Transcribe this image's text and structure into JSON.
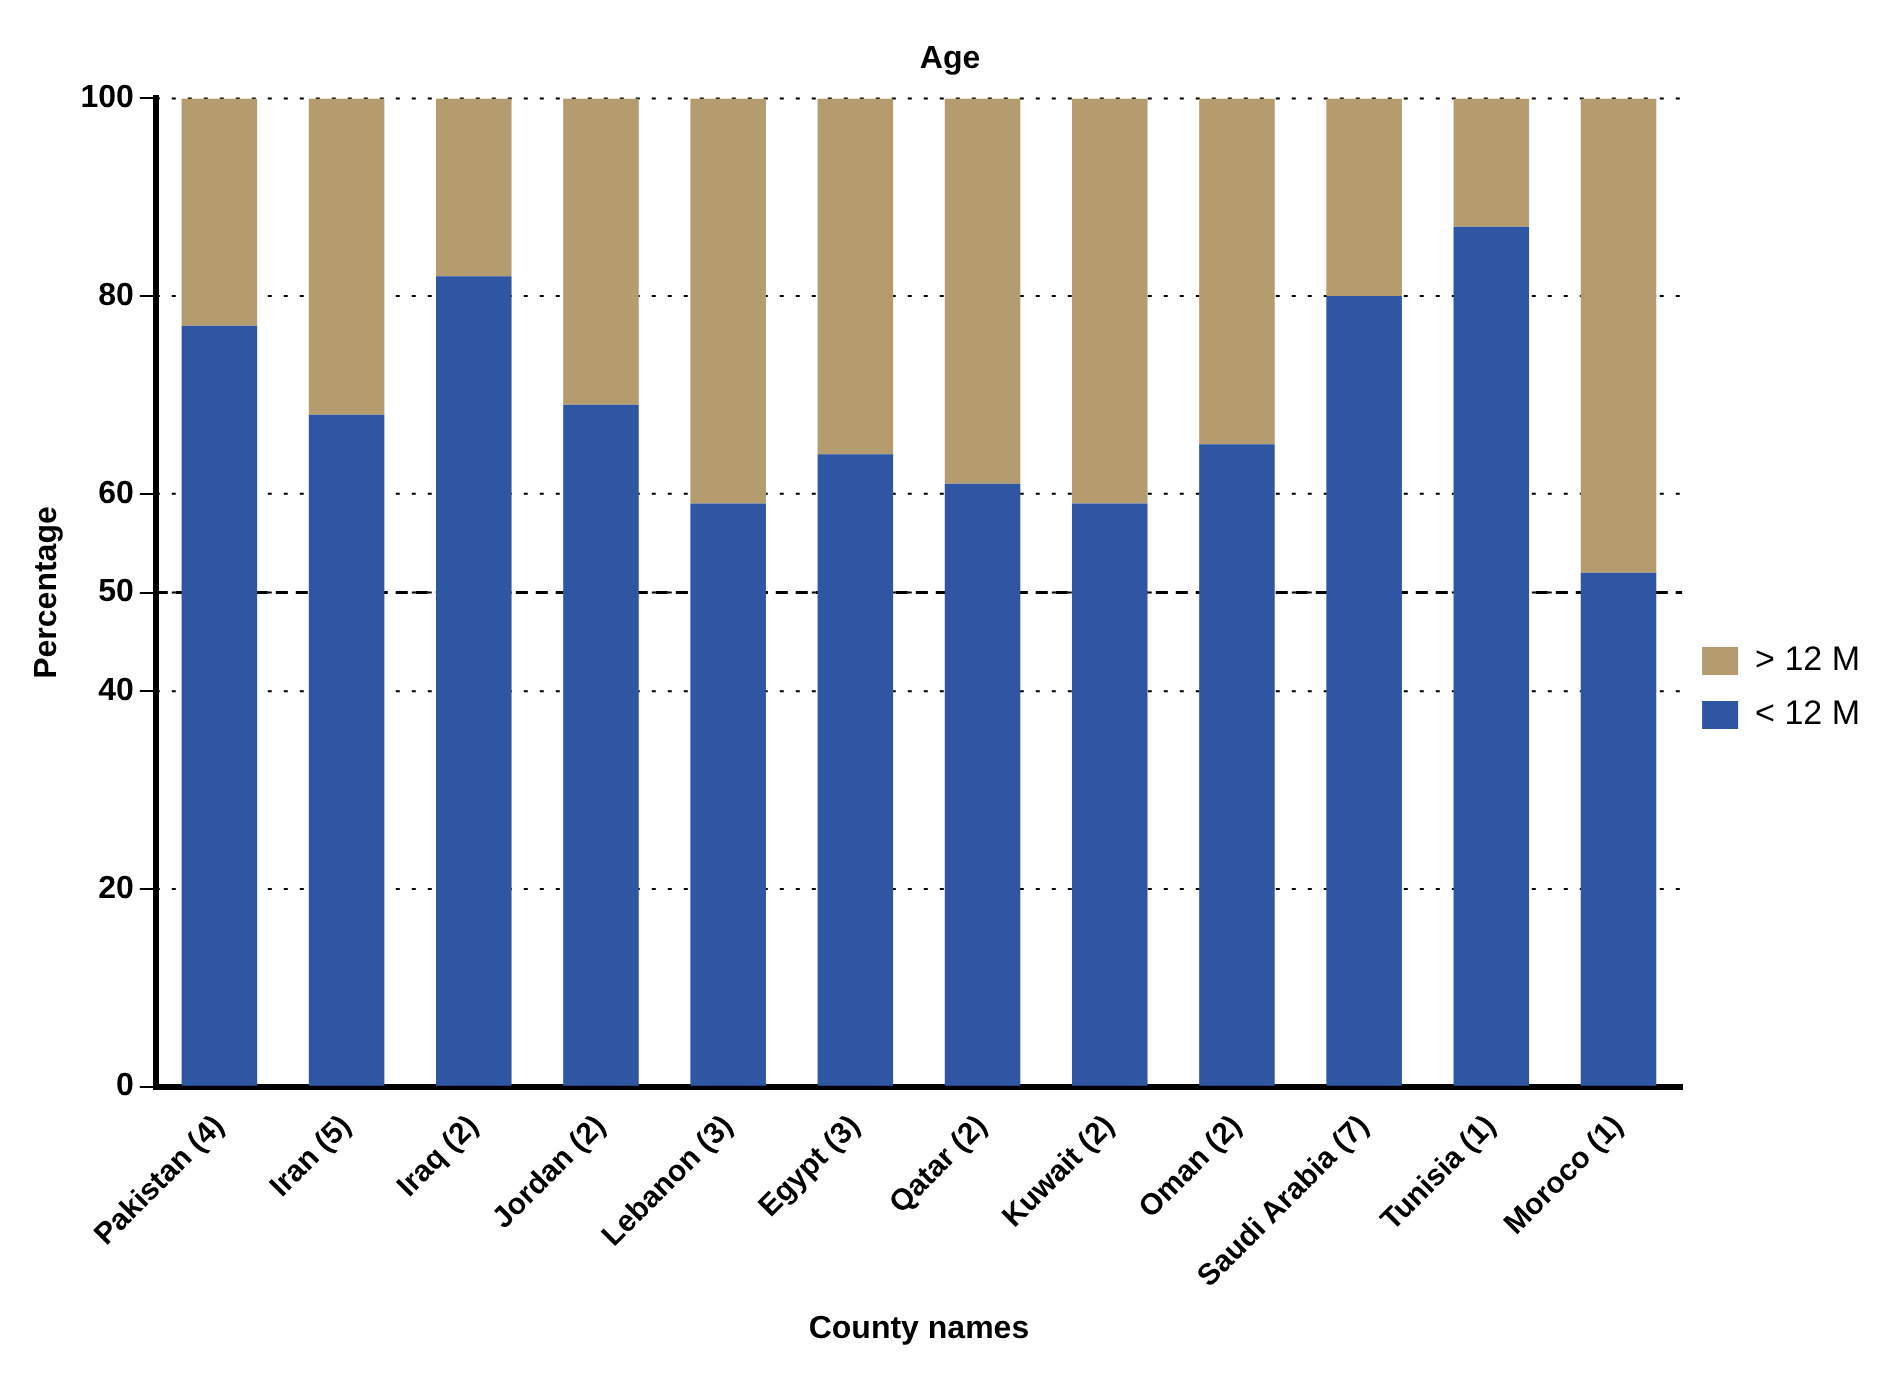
{
  "chart_data": {
    "type": "bar",
    "title": "Age",
    "xlabel": "County names",
    "ylabel": "Percentage",
    "categories": [
      "Pakistan (4)",
      "Iran (5)",
      "Iraq (2)",
      "Jordan (2)",
      "Lebanon (3)",
      "Egypt (3)",
      "Qatar (2)",
      "Kuwait (2)",
      "Oman (2)",
      "Saudi Arabia (7)",
      "Tunisia (1)",
      "Moroco (1)"
    ],
    "series": [
      {
        "name": "< 12 M",
        "color": "#2e56a3",
        "values": [
          77,
          68,
          82,
          69,
          59,
          64,
          61,
          59,
          65,
          80,
          87,
          52
        ]
      },
      {
        "name": "> 12 M",
        "color": "#b49c6e",
        "values": [
          23,
          32,
          18,
          31,
          41,
          36,
          39,
          41,
          35,
          20,
          13,
          48
        ]
      }
    ],
    "stacked": true,
    "ylim": [
      0,
      100
    ],
    "yticks": [
      0,
      20,
      40,
      50,
      60,
      80,
      100
    ],
    "grid": "y",
    "legend": "right",
    "ref_lines": [
      {
        "axis": "y",
        "value": 50,
        "line_style": "dashed"
      }
    ]
  }
}
